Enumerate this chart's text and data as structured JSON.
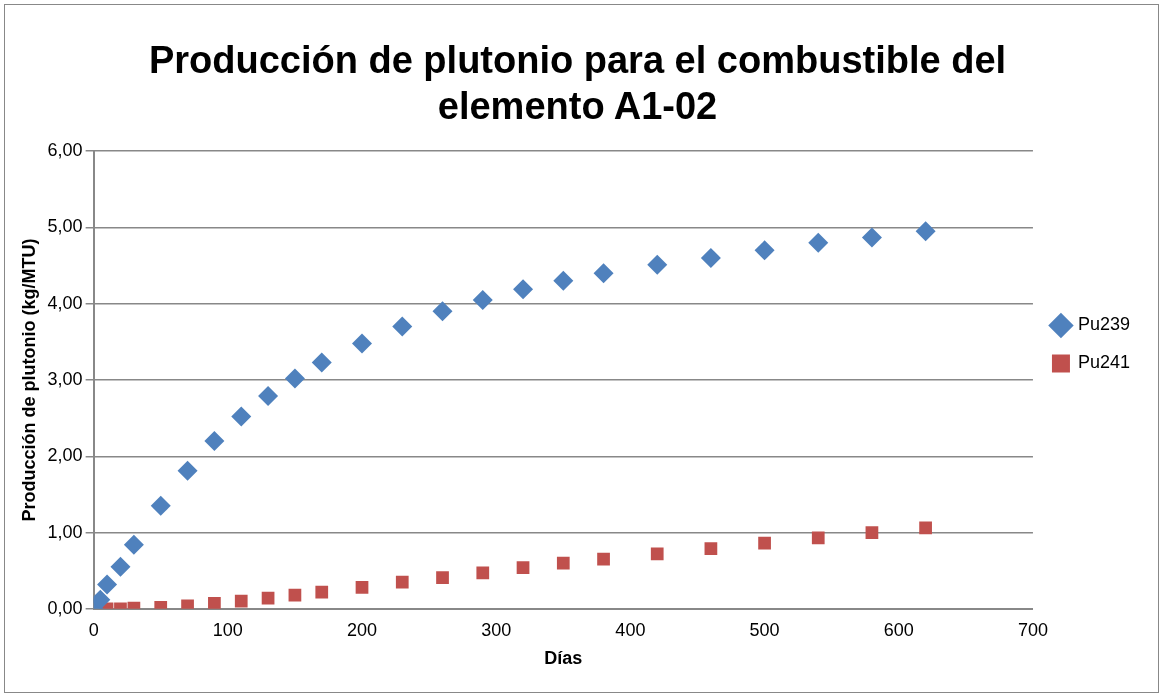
{
  "chart_data": {
    "type": "scatter",
    "title": "Producción de plutonio para el combustible del elemento A1-02",
    "xlabel": "Días",
    "ylabel": "Producción de plutonio (kg/MTU)",
    "xlim": [
      0,
      700
    ],
    "xticks": [
      0,
      100,
      200,
      300,
      400,
      500,
      600,
      700
    ],
    "ylim": [
      0,
      6
    ],
    "yticks": [
      {
        "value": 0,
        "label": "0,00"
      },
      {
        "value": 1,
        "label": "1,00"
      },
      {
        "value": 2,
        "label": "2,00"
      },
      {
        "value": 3,
        "label": "3,00"
      },
      {
        "value": 4,
        "label": "4,00"
      },
      {
        "value": 5,
        "label": "5,00"
      },
      {
        "value": 6,
        "label": "6,00"
      }
    ],
    "grid": "y",
    "legend": "right",
    "x": [
      0,
      5,
      10,
      20,
      30,
      50,
      70,
      90,
      110,
      130,
      150,
      170,
      200,
      230,
      260,
      290,
      320,
      350,
      380,
      420,
      460,
      500,
      540,
      580,
      620
    ],
    "series": [
      {
        "name": "Pu239",
        "color": "#4f81bd",
        "marker": "diamond",
        "values": [
          0,
          0.12,
          0.32,
          0.55,
          0.84,
          1.35,
          1.81,
          2.2,
          2.52,
          2.79,
          3.02,
          3.23,
          3.48,
          3.7,
          3.9,
          4.05,
          4.19,
          4.3,
          4.4,
          4.51,
          4.6,
          4.7,
          4.8,
          4.87,
          4.95
        ]
      },
      {
        "name": "Pu241",
        "color": "#c0504d",
        "marker": "square",
        "values": [
          null,
          null,
          0,
          0,
          0.01,
          0.02,
          0.04,
          0.07,
          0.1,
          0.14,
          0.18,
          0.22,
          0.28,
          0.35,
          0.41,
          0.47,
          0.54,
          0.6,
          0.65,
          0.72,
          0.79,
          0.86,
          0.93,
          1.0,
          1.06
        ]
      }
    ]
  }
}
